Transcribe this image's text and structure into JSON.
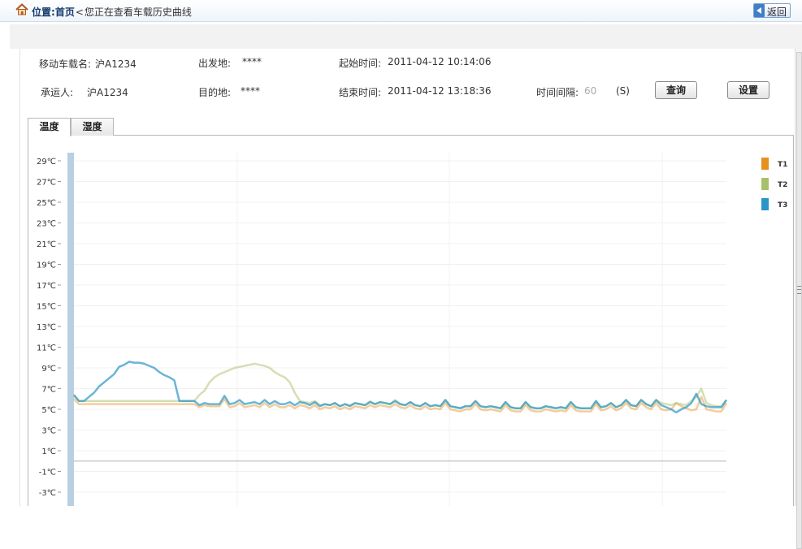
{
  "breadcrumb": {
    "location_label": "位置",
    "colon": ":",
    "home": "首页",
    "separator": "<",
    "current": "您正在查看车载历史曲线"
  },
  "back_button": {
    "label": "返回",
    "icon": "arrow-left-icon"
  },
  "info": {
    "vehicle_label": "移动车载名:",
    "vehicle_value": "沪A1234",
    "origin_label": "出发地:",
    "origin_value": "****",
    "start_label": "起始时间:",
    "start_value": "2011-04-12 10:14:06",
    "carrier_label": "承运人:",
    "carrier_value": "沪A1234",
    "destination_label": "目的地:",
    "destination_value": "****",
    "end_label": "结束时间:",
    "end_value": "2011-04-12 13:18:36",
    "interval_label": "时间间隔:",
    "interval_value": "60",
    "interval_unit": "(S)"
  },
  "buttons": {
    "query": "查询",
    "settings": "设置"
  },
  "tabs": [
    {
      "label": "温度",
      "active": true
    },
    {
      "label": "湿度",
      "active": false
    }
  ],
  "chart_data": {
    "type": "line",
    "y_ticks": [
      "29℃",
      "27℃",
      "25℃",
      "23℃",
      "21℃",
      "19℃",
      "17℃",
      "15℃",
      "13℃",
      "11℃",
      "9℃",
      "7℃",
      "5℃",
      "3℃",
      "1℃",
      "-1℃",
      "-3℃"
    ],
    "y_range": [
      -3.5,
      30
    ],
    "x_range": [
      0,
      130
    ],
    "zero_line": 0,
    "grid": true,
    "legend_position": "top-right",
    "series": [
      {
        "name": "T1",
        "color": "#e6901f",
        "values": [
          6.0,
          5.5,
          5.5,
          5.5,
          5.5,
          5.5,
          5.5,
          5.5,
          5.5,
          5.5,
          5.5,
          5.5,
          5.5,
          5.5,
          5.5,
          5.5,
          5.5,
          5.5,
          5.5,
          5.5,
          5.5,
          5.5,
          5.5,
          5.5,
          5.5,
          5.2,
          5.4,
          5.3,
          5.3,
          5.3,
          6.0,
          5.2,
          5.3,
          5.6,
          5.2,
          5.3,
          5.4,
          5.2,
          5.6,
          5.2,
          5.5,
          5.2,
          5.2,
          5.4,
          5.1,
          5.4,
          5.3,
          5.1,
          5.4,
          5.0,
          5.2,
          5.1,
          5.3,
          5.0,
          5.2,
          5.0,
          5.3,
          5.2,
          5.1,
          5.4,
          5.2,
          5.4,
          5.3,
          5.2,
          5.5,
          5.2,
          5.1,
          5.4,
          5.1,
          5.0,
          5.3,
          5.0,
          5.1,
          5.0,
          5.6,
          5.0,
          4.9,
          4.8,
          5.0,
          5.0,
          5.5,
          5.0,
          4.9,
          5.0,
          4.9,
          4.8,
          5.4,
          4.9,
          4.8,
          4.8,
          5.4,
          4.9,
          4.8,
          4.8,
          5.0,
          4.9,
          4.8,
          4.9,
          4.8,
          5.4,
          4.9,
          4.8,
          4.8,
          4.8,
          5.5,
          4.9,
          5.0,
          5.3,
          4.9,
          5.1,
          5.6,
          5.1,
          5.0,
          5.6,
          5.2,
          5.0,
          5.6,
          5.0,
          4.9,
          5.0,
          5.6,
          5.3,
          5.1,
          4.9,
          5.0,
          6.2,
          5.0,
          4.9,
          4.8,
          4.8,
          5.6
        ]
      },
      {
        "name": "T2",
        "color": "#a9c06a",
        "values": [
          6.3,
          5.8,
          5.8,
          5.8,
          5.8,
          5.8,
          5.8,
          5.8,
          5.8,
          5.8,
          5.8,
          5.8,
          5.8,
          5.8,
          5.8,
          5.8,
          5.8,
          5.8,
          5.8,
          5.8,
          5.8,
          5.8,
          5.8,
          5.8,
          5.8,
          6.4,
          6.8,
          7.6,
          8.1,
          8.4,
          8.6,
          8.8,
          9.0,
          9.1,
          9.2,
          9.3,
          9.4,
          9.3,
          9.2,
          9.0,
          8.6,
          8.3,
          8.1,
          7.6,
          6.6,
          5.8,
          5.7,
          5.6,
          5.8,
          5.4,
          5.5,
          5.4,
          5.6,
          5.3,
          5.5,
          5.4,
          5.6,
          5.5,
          5.4,
          5.8,
          5.5,
          5.7,
          5.6,
          5.5,
          5.9,
          5.5,
          5.4,
          5.7,
          5.4,
          5.3,
          5.6,
          5.3,
          5.4,
          5.3,
          5.9,
          5.3,
          5.2,
          5.1,
          5.3,
          5.3,
          5.8,
          5.3,
          5.2,
          5.3,
          5.2,
          5.1,
          5.7,
          5.2,
          5.1,
          5.1,
          5.7,
          5.2,
          5.1,
          5.1,
          5.3,
          5.2,
          5.1,
          5.2,
          5.1,
          5.7,
          5.2,
          5.1,
          5.1,
          5.1,
          5.8,
          5.2,
          5.3,
          5.6,
          5.2,
          5.4,
          5.9,
          5.4,
          5.3,
          5.9,
          5.5,
          5.3,
          5.9,
          5.6,
          5.5,
          5.4,
          5.6,
          5.5,
          5.4,
          5.8,
          6.2,
          7.0,
          5.6,
          5.4,
          5.3,
          5.3,
          5.9
        ]
      },
      {
        "name": "T3",
        "color": "#2a95c8",
        "values": [
          6.4,
          5.8,
          5.8,
          6.2,
          6.6,
          7.2,
          7.6,
          8.0,
          8.4,
          9.1,
          9.3,
          9.6,
          9.5,
          9.5,
          9.4,
          9.2,
          9.0,
          8.6,
          8.3,
          8.1,
          7.8,
          5.8,
          5.8,
          5.8,
          5.8,
          5.4,
          5.6,
          5.5,
          5.5,
          5.5,
          6.3,
          5.5,
          5.6,
          5.9,
          5.5,
          5.6,
          5.7,
          5.5,
          5.9,
          5.5,
          5.8,
          5.5,
          5.5,
          5.7,
          5.4,
          5.7,
          5.6,
          5.4,
          5.7,
          5.3,
          5.5,
          5.4,
          5.6,
          5.3,
          5.5,
          5.3,
          5.6,
          5.5,
          5.4,
          5.7,
          5.5,
          5.7,
          5.6,
          5.5,
          5.8,
          5.5,
          5.4,
          5.7,
          5.4,
          5.3,
          5.6,
          5.3,
          5.4,
          5.3,
          5.9,
          5.3,
          5.2,
          5.1,
          5.3,
          5.3,
          5.8,
          5.3,
          5.2,
          5.3,
          5.2,
          5.1,
          5.7,
          5.2,
          5.1,
          5.1,
          5.7,
          5.2,
          5.1,
          5.1,
          5.3,
          5.2,
          5.1,
          5.2,
          5.1,
          5.7,
          5.2,
          5.1,
          5.1,
          5.1,
          5.8,
          5.2,
          5.3,
          5.6,
          5.2,
          5.4,
          5.9,
          5.4,
          5.3,
          5.9,
          5.5,
          5.3,
          5.9,
          5.4,
          5.2,
          5.0,
          4.7,
          5.0,
          5.2,
          5.6,
          6.5,
          5.5,
          5.3,
          5.2,
          5.2,
          5.2,
          5.9
        ]
      }
    ]
  }
}
